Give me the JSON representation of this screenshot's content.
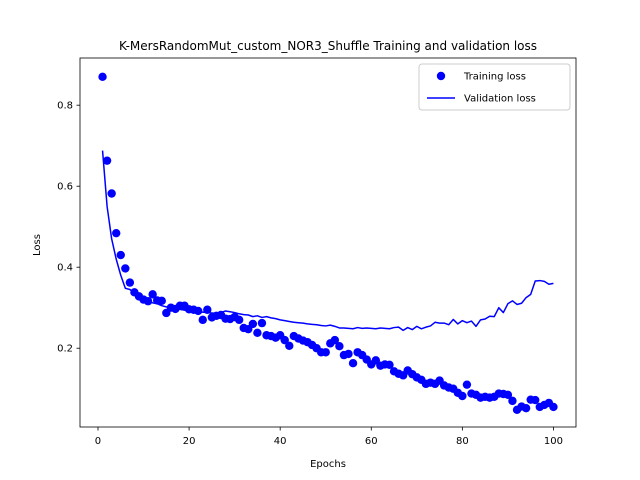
{
  "chart_data": {
    "type": "line",
    "title": "K-MersRandomMut_custom_NOR3_Shuffle Training and validation loss",
    "xlabel": "Epochs",
    "ylabel": "Loss",
    "xlim": [
      -3.95,
      104.95
    ],
    "ylim": [
      0.0055,
      0.9165
    ],
    "x_ticks": [
      0,
      20,
      40,
      60,
      80,
      100
    ],
    "y_ticks": [
      0.2,
      0.4,
      0.6,
      0.8
    ],
    "x_tick_labels": [
      "0",
      "20",
      "40",
      "60",
      "80",
      "100"
    ],
    "y_tick_labels": [
      "0.2",
      "0.4",
      "0.6",
      "0.8"
    ],
    "grid": false,
    "legend_position": "upper right",
    "series": [
      {
        "name": "Training loss",
        "style": "markers",
        "color": "#0000ff",
        "x": [
          1,
          2,
          3,
          4,
          5,
          6,
          7,
          8,
          9,
          10,
          11,
          12,
          13,
          14,
          15,
          16,
          17,
          18,
          19,
          20,
          21,
          22,
          23,
          24,
          25,
          26,
          27,
          28,
          29,
          30,
          31,
          32,
          33,
          34,
          35,
          36,
          37,
          38,
          39,
          40,
          41,
          42,
          43,
          44,
          45,
          46,
          47,
          48,
          49,
          50,
          51,
          52,
          53,
          54,
          55,
          56,
          57,
          58,
          59,
          60,
          61,
          62,
          63,
          64,
          65,
          66,
          67,
          68,
          69,
          70,
          71,
          72,
          73,
          74,
          75,
          76,
          77,
          78,
          79,
          80,
          81,
          82,
          83,
          84,
          85,
          86,
          87,
          88,
          89,
          90,
          91,
          92,
          93,
          94,
          95,
          96,
          97,
          98,
          99,
          100
        ],
        "y": [
          0.87,
          0.663,
          0.582,
          0.484,
          0.43,
          0.397,
          0.362,
          0.338,
          0.328,
          0.32,
          0.316,
          0.333,
          0.318,
          0.317,
          0.287,
          0.3,
          0.297,
          0.305,
          0.305,
          0.296,
          0.295,
          0.292,
          0.27,
          0.295,
          0.276,
          0.28,
          0.282,
          0.273,
          0.272,
          0.277,
          0.27,
          0.25,
          0.247,
          0.26,
          0.238,
          0.262,
          0.232,
          0.23,
          0.226,
          0.232,
          0.22,
          0.206,
          0.23,
          0.224,
          0.219,
          0.215,
          0.208,
          0.2,
          0.19,
          0.19,
          0.212,
          0.22,
          0.205,
          0.183,
          0.186,
          0.163,
          0.19,
          0.183,
          0.172,
          0.16,
          0.17,
          0.157,
          0.16,
          0.159,
          0.143,
          0.137,
          0.133,
          0.145,
          0.136,
          0.128,
          0.122,
          0.112,
          0.115,
          0.112,
          0.12,
          0.108,
          0.103,
          0.1,
          0.09,
          0.082,
          0.11,
          0.088,
          0.085,
          0.078,
          0.08,
          0.078,
          0.08,
          0.088,
          0.087,
          0.085,
          0.07,
          0.048,
          0.056,
          0.052,
          0.073,
          0.072,
          0.055,
          0.06,
          0.065,
          0.055
        ]
      },
      {
        "name": "Validation loss",
        "style": "line",
        "color": "#0000ff",
        "x": [
          1,
          2,
          3,
          4,
          5,
          6,
          7,
          8,
          9,
          10,
          11,
          12,
          13,
          14,
          15,
          16,
          17,
          18,
          19,
          20,
          21,
          22,
          23,
          24,
          25,
          26,
          27,
          28,
          29,
          30,
          31,
          32,
          33,
          34,
          35,
          36,
          37,
          38,
          39,
          40,
          41,
          42,
          43,
          44,
          45,
          46,
          47,
          48,
          49,
          50,
          51,
          52,
          53,
          54,
          55,
          56,
          57,
          58,
          59,
          60,
          61,
          62,
          63,
          64,
          65,
          66,
          67,
          68,
          69,
          70,
          71,
          72,
          73,
          74,
          75,
          76,
          77,
          78,
          79,
          80,
          81,
          82,
          83,
          84,
          85,
          86,
          87,
          88,
          89,
          90,
          91,
          92,
          93,
          94,
          95,
          96,
          97,
          98,
          99,
          100
        ],
        "y": [
          0.688,
          0.55,
          0.47,
          0.42,
          0.38,
          0.348,
          0.345,
          0.335,
          0.328,
          0.322,
          0.316,
          0.312,
          0.31,
          0.305,
          0.302,
          0.3,
          0.298,
          0.296,
          0.294,
          0.292,
          0.291,
          0.29,
          0.289,
          0.288,
          0.287,
          0.286,
          0.288,
          0.292,
          0.29,
          0.288,
          0.285,
          0.283,
          0.282,
          0.278,
          0.28,
          0.276,
          0.278,
          0.275,
          0.273,
          0.27,
          0.268,
          0.266,
          0.264,
          0.263,
          0.262,
          0.26,
          0.259,
          0.258,
          0.256,
          0.255,
          0.257,
          0.254,
          0.25,
          0.25,
          0.249,
          0.248,
          0.251,
          0.249,
          0.25,
          0.249,
          0.248,
          0.25,
          0.249,
          0.248,
          0.251,
          0.252,
          0.244,
          0.251,
          0.246,
          0.254,
          0.248,
          0.252,
          0.255,
          0.264,
          0.262,
          0.262,
          0.258,
          0.271,
          0.26,
          0.268,
          0.263,
          0.267,
          0.254,
          0.27,
          0.272,
          0.279,
          0.278,
          0.3,
          0.288,
          0.31,
          0.317,
          0.308,
          0.311,
          0.325,
          0.333,
          0.366,
          0.367,
          0.365,
          0.358,
          0.36
        ]
      }
    ]
  }
}
